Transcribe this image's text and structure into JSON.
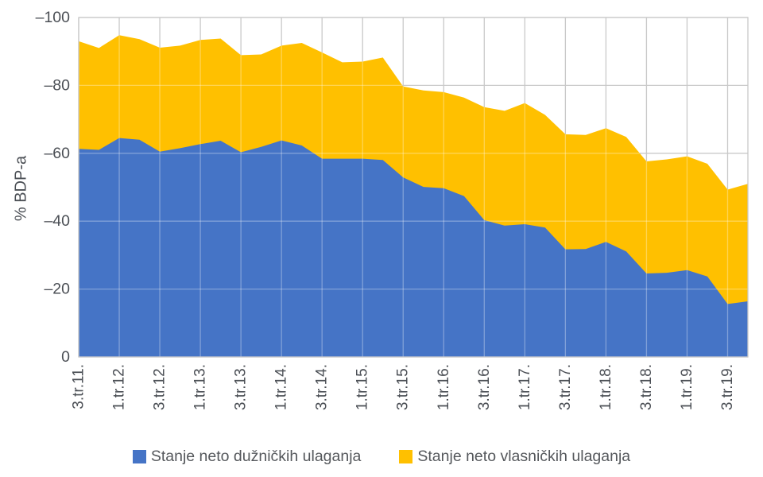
{
  "chart_data": {
    "type": "area",
    "stacked": true,
    "title": "",
    "ylabel": "% BDP-a",
    "grid": true,
    "legend_position": "bottom",
    "y_axis": {
      "inverted": true,
      "tick_values": [
        -100,
        -80,
        -60,
        -40,
        -20,
        0
      ],
      "tick_labels": [
        "–100",
        "–80",
        "–60",
        "–40",
        "–20",
        "0"
      ],
      "range_bottom": 0,
      "range_top": -100
    },
    "x_axis": {
      "tick_labels": [
        "3.tr.11.",
        "1.tr.12.",
        "3.tr.12.",
        "1.tr.13.",
        "3.tr.13.",
        "1.tr.14.",
        "3.tr.14.",
        "1.tr.15.",
        "3.tr.15.",
        "1.tr.16.",
        "3.tr.16.",
        "1.tr.17.",
        "3.tr.17.",
        "1.tr.18.",
        "3.tr.18.",
        "1.tr.19.",
        "3.tr.19."
      ],
      "label_every": 2
    },
    "series": [
      {
        "name": "Stanje neto dužničkih ulaganja",
        "color": "#4574C6",
        "values": [
          -61.3,
          -61.0,
          -64.5,
          -64.0,
          -60.5,
          -61.5,
          -62.7,
          -63.7,
          -60.3,
          -61.9,
          -63.8,
          -62.3,
          -58.4,
          -58.4,
          -58.4,
          -58.0,
          -52.9,
          -50.1,
          -49.7,
          -47.4,
          -40.3,
          -38.7,
          -39.1,
          -38.1,
          -31.7,
          -31.8,
          -33.9,
          -31.1,
          -24.6,
          -24.8,
          -25.6,
          -23.7,
          -15.6,
          -16.4
        ]
      },
      {
        "name": "Stanje neto vlasničkih ulaganja",
        "color": "#FFC000",
        "values": [
          -31.7,
          -30.0,
          -30.3,
          -29.6,
          -30.6,
          -30.2,
          -30.7,
          -30.1,
          -28.6,
          -27.2,
          -27.9,
          -30.2,
          -31.3,
          -28.4,
          -28.6,
          -30.2,
          -26.8,
          -28.4,
          -28.3,
          -29.0,
          -33.3,
          -33.8,
          -35.7,
          -33.2,
          -33.9,
          -33.6,
          -33.5,
          -33.7,
          -33.0,
          -33.4,
          -33.5,
          -33.2,
          -33.7,
          -34.6
        ]
      }
    ]
  },
  "style": {
    "gridline_color": "#c9c9c9",
    "axis_text_color": "#4b4f55",
    "background": "#ffffff"
  }
}
